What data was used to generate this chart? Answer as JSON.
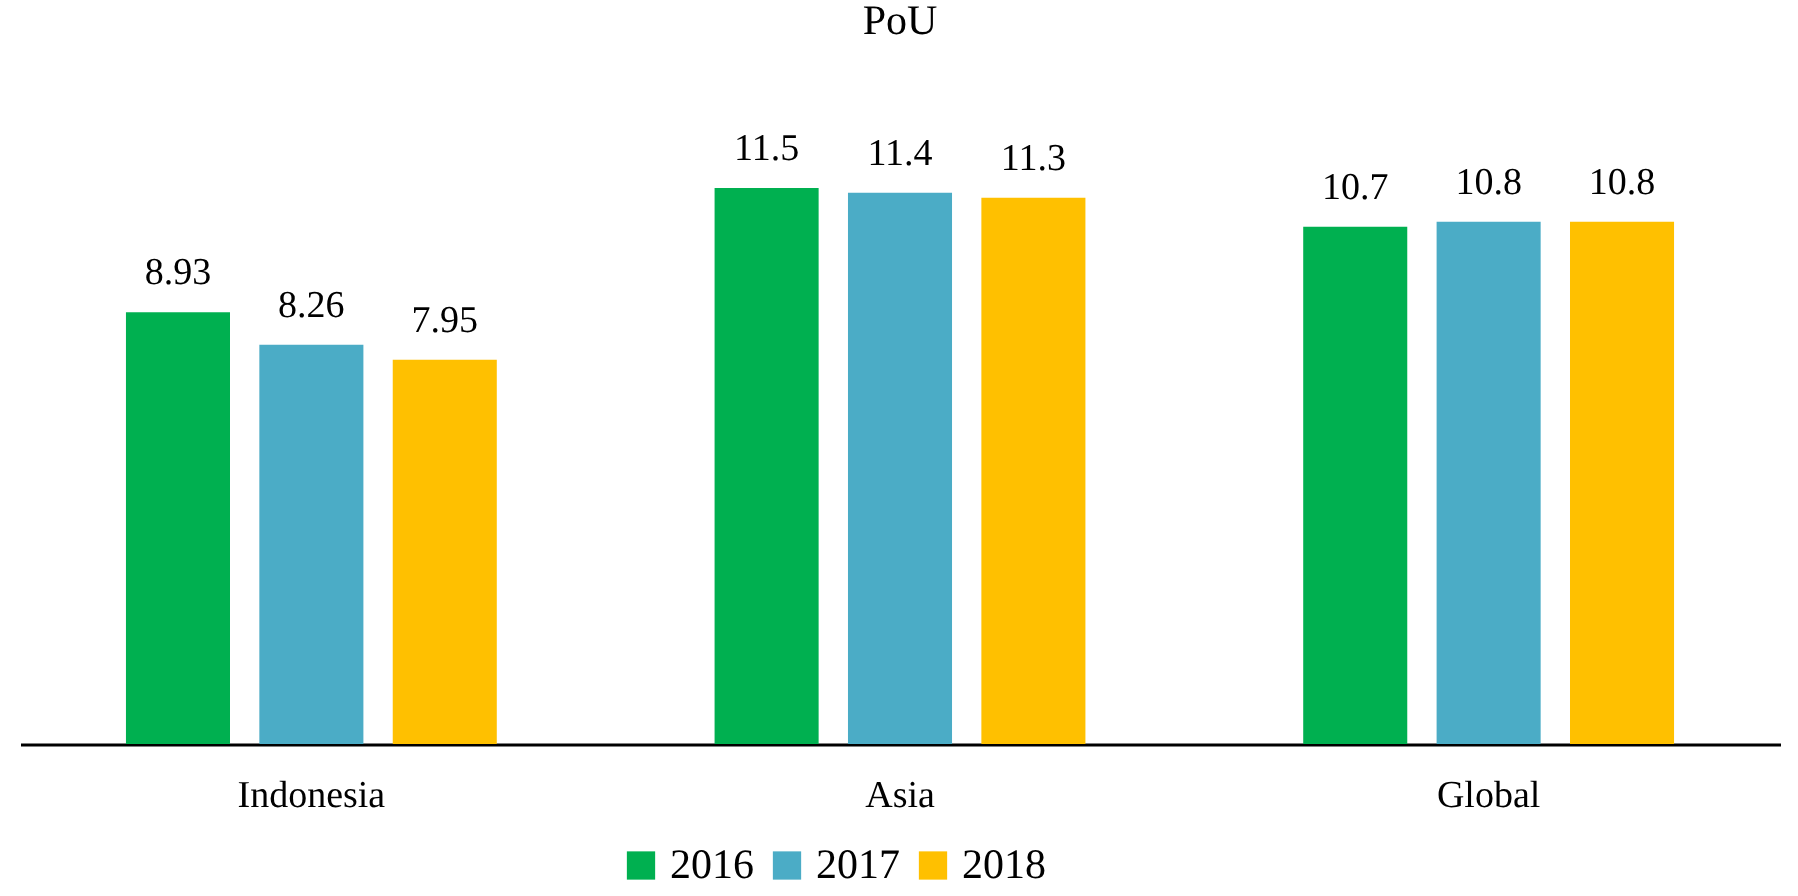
{
  "chart_data": {
    "type": "bar",
    "title": "PoU",
    "categories": [
      "Indonesia",
      "Asia",
      "Global"
    ],
    "series": [
      {
        "name": "2016",
        "color": "#00b050",
        "values": [
          8.93,
          11.5,
          10.7
        ]
      },
      {
        "name": "2017",
        "color": "#4bacc6",
        "values": [
          8.26,
          11.4,
          10.8
        ]
      },
      {
        "name": "2018",
        "color": "#ffc000",
        "values": [
          7.95,
          11.3,
          10.8
        ]
      }
    ],
    "data_labels": true,
    "legend": "bottom"
  }
}
